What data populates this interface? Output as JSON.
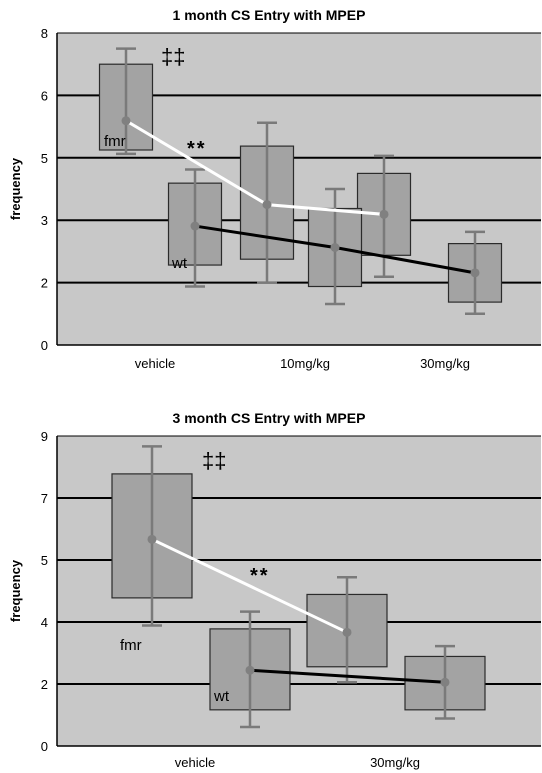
{
  "chart_data": [
    {
      "type": "box",
      "title": "1 month CS Entry with MPEP",
      "ylabel": "frequency",
      "yticks": [
        "0",
        "2",
        "3",
        "5",
        "6",
        "8"
      ],
      "ytick_values": [
        0,
        1.6,
        3.2,
        4.8,
        6.4,
        8
      ],
      "ylim": [
        0,
        8
      ],
      "categories": [
        "vehicle",
        "10mg/kg",
        "30mg/kg"
      ],
      "grid": true,
      "annotations": {
        "significance": "‡‡",
        "stars": "**"
      },
      "series": [
        {
          "name": "fmr",
          "line_color": "#ffffff",
          "boxes": [
            {
              "category": "vehicle",
              "low": 4.9,
              "q1": 5.0,
              "median": 5.75,
              "q3": 7.2,
              "high": 7.6
            },
            {
              "category": "10mg/kg",
              "low": 1.6,
              "q1": 2.2,
              "median": 3.6,
              "q3": 5.1,
              "high": 5.7
            },
            {
              "category": "30mg/kg",
              "low": 1.75,
              "q1": 2.3,
              "median": 3.35,
              "q3": 4.4,
              "high": 4.85
            }
          ]
        },
        {
          "name": "wt",
          "line_color": "#000000",
          "boxes": [
            {
              "category": "vehicle",
              "low": 1.5,
              "q1": 2.05,
              "median": 3.05,
              "q3": 4.15,
              "high": 4.5
            },
            {
              "category": "10mg/kg",
              "low": 1.05,
              "q1": 1.5,
              "median": 2.5,
              "q3": 3.5,
              "high": 4.0
            },
            {
              "category": "30mg/kg",
              "low": 0.8,
              "q1": 1.1,
              "median": 1.85,
              "q3": 2.6,
              "high": 2.9
            }
          ]
        }
      ]
    },
    {
      "type": "box",
      "title": "3 month CS Entry with MPEP",
      "ylabel": "frequency",
      "yticks": [
        "0",
        "2",
        "4",
        "5",
        "7",
        "9"
      ],
      "ytick_values": [
        0,
        1.8,
        3.6,
        5.4,
        7.2,
        9
      ],
      "ylim": [
        0,
        9
      ],
      "categories": [
        "vehicle",
        "30mg/kg"
      ],
      "grid": true,
      "annotations": {
        "significance": "‡‡",
        "stars": "**"
      },
      "series": [
        {
          "name": "fmr",
          "line_color": "#ffffff",
          "boxes": [
            {
              "category": "vehicle",
              "low": 3.5,
              "q1": 4.3,
              "median": 6.0,
              "q3": 7.9,
              "high": 8.7
            },
            {
              "category": "30mg/kg",
              "low": 1.85,
              "q1": 2.3,
              "median": 3.3,
              "q3": 4.4,
              "high": 4.9
            }
          ]
        },
        {
          "name": "wt",
          "line_color": "#000000",
          "boxes": [
            {
              "category": "vehicle",
              "low": 0.55,
              "q1": 1.05,
              "median": 2.2,
              "q3": 3.4,
              "high": 3.9
            },
            {
              "category": "30mg/kg",
              "low": 0.8,
              "q1": 1.05,
              "median": 1.85,
              "q3": 2.6,
              "high": 2.9
            }
          ]
        }
      ]
    }
  ]
}
